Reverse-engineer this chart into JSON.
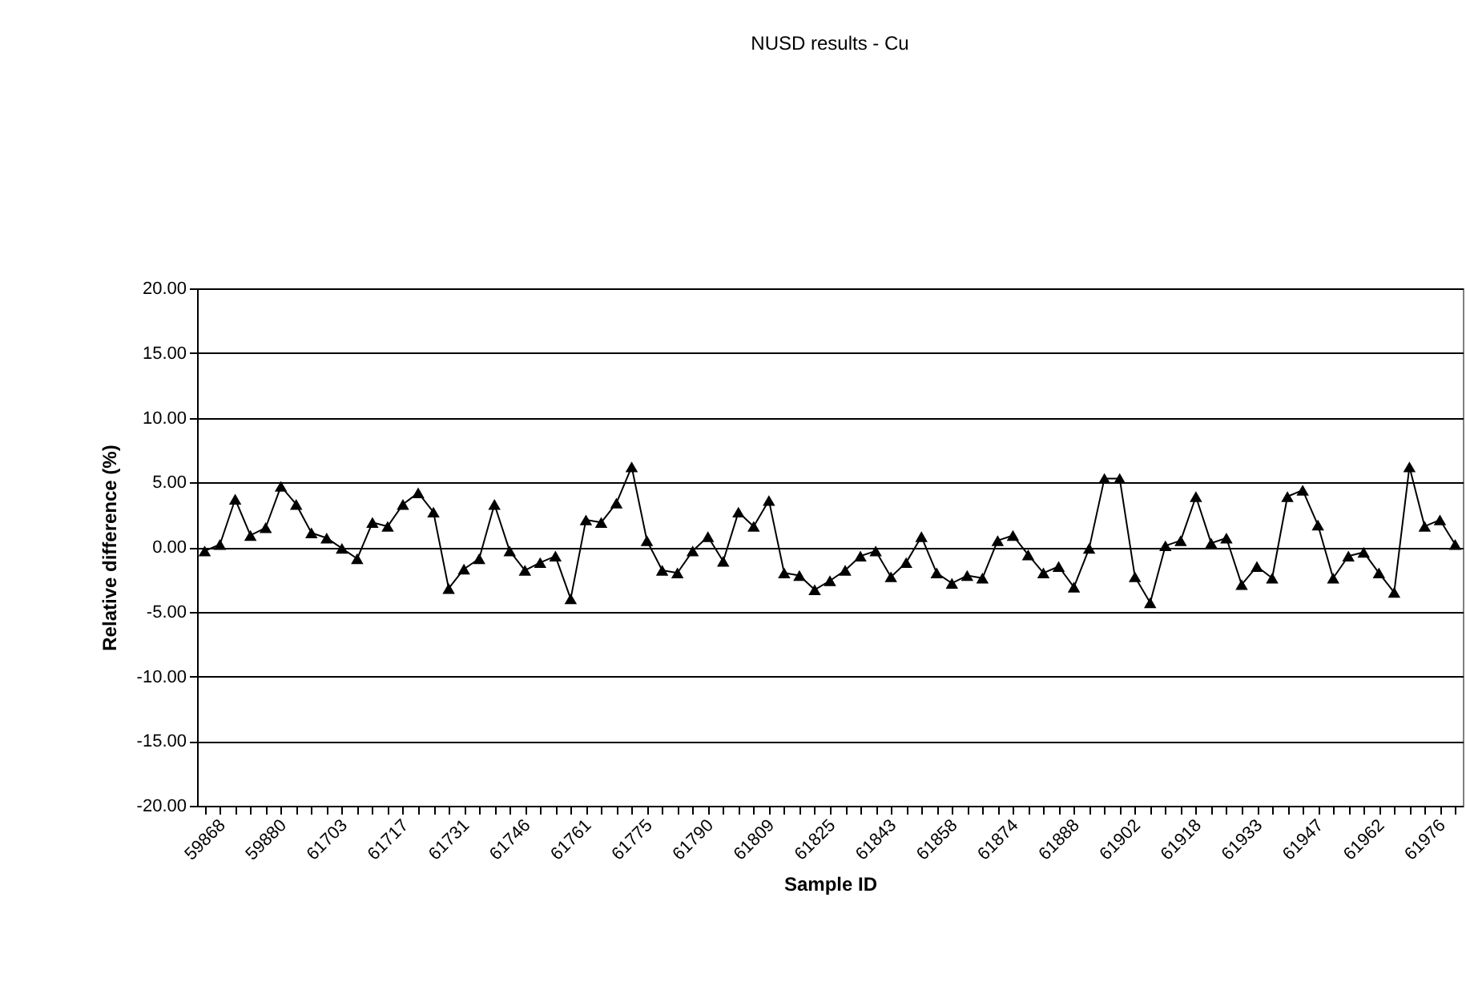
{
  "chart_data": {
    "type": "line",
    "title": "NUSD results - Cu",
    "xlabel": "Sample ID",
    "ylabel": "Relative difference (%)",
    "categories": [
      "59868",
      null,
      null,
      null,
      "59880",
      null,
      null,
      null,
      "61703",
      null,
      null,
      null,
      "61717",
      null,
      null,
      null,
      "61731",
      null,
      null,
      null,
      "61746",
      null,
      null,
      null,
      "61761",
      null,
      null,
      null,
      "61775",
      null,
      null,
      null,
      "61790",
      null,
      null,
      null,
      "61809",
      null,
      null,
      null,
      "61825",
      null,
      null,
      null,
      "61843",
      null,
      null,
      null,
      "61858",
      null,
      null,
      null,
      "61874",
      null,
      null,
      null,
      "61888",
      null,
      null,
      null,
      "61902",
      null,
      null,
      null,
      "61918",
      null,
      null,
      null,
      "61933",
      null,
      null,
      null,
      "61947",
      null,
      null,
      null,
      "61962",
      null,
      null,
      null,
      "61976",
      null,
      null
    ],
    "series": [
      {
        "color": "#000000",
        "values": [
          -0.3,
          0.2,
          3.7,
          0.9,
          1.5,
          4.7,
          3.3,
          1.1,
          0.7,
          -0.1,
          -0.9,
          1.9,
          1.6,
          3.3,
          4.2,
          2.7,
          -3.2,
          -1.7,
          -0.9,
          3.3,
          -0.3,
          -1.8,
          -1.2,
          -0.7,
          -4.0,
          2.1,
          1.9,
          3.4,
          6.2,
          0.5,
          -1.8,
          -2.0,
          -0.3,
          0.8,
          -1.1,
          2.7,
          1.6,
          3.6,
          -2.0,
          -2.2,
          -3.3,
          -2.6,
          -1.8,
          -0.7,
          -0.3,
          -2.3,
          -1.2,
          0.8,
          -2.0,
          -2.8,
          -2.2,
          -2.4,
          0.5,
          0.9,
          -0.6,
          -2.0,
          -1.5,
          -3.1,
          -0.1,
          5.3,
          5.3,
          -2.3,
          -4.3,
          0.1,
          0.5,
          3.9,
          0.3,
          0.7,
          -2.9,
          -1.5,
          -2.4,
          3.9,
          4.4,
          1.7,
          -2.4,
          -0.7,
          -0.4,
          -2.0,
          -3.5,
          6.2,
          1.6,
          2.1,
          0.2
        ]
      }
    ],
    "ylim": [
      -20,
      20
    ],
    "yticks": [
      {
        "value": -20,
        "label": "-20.00"
      },
      {
        "value": -15,
        "label": "-15.00"
      },
      {
        "value": -10,
        "label": "-10.00"
      },
      {
        "value": -5,
        "label": "-5.00"
      },
      {
        "value": 0,
        "label": "0.00"
      },
      {
        "value": 5,
        "label": "5.00"
      },
      {
        "value": 10,
        "label": "10.00"
      },
      {
        "value": 15,
        "label": "15.00"
      },
      {
        "value": 20,
        "label": "20.00"
      }
    ],
    "grid": "y",
    "marker": "triangle",
    "line_style": "solid"
  }
}
